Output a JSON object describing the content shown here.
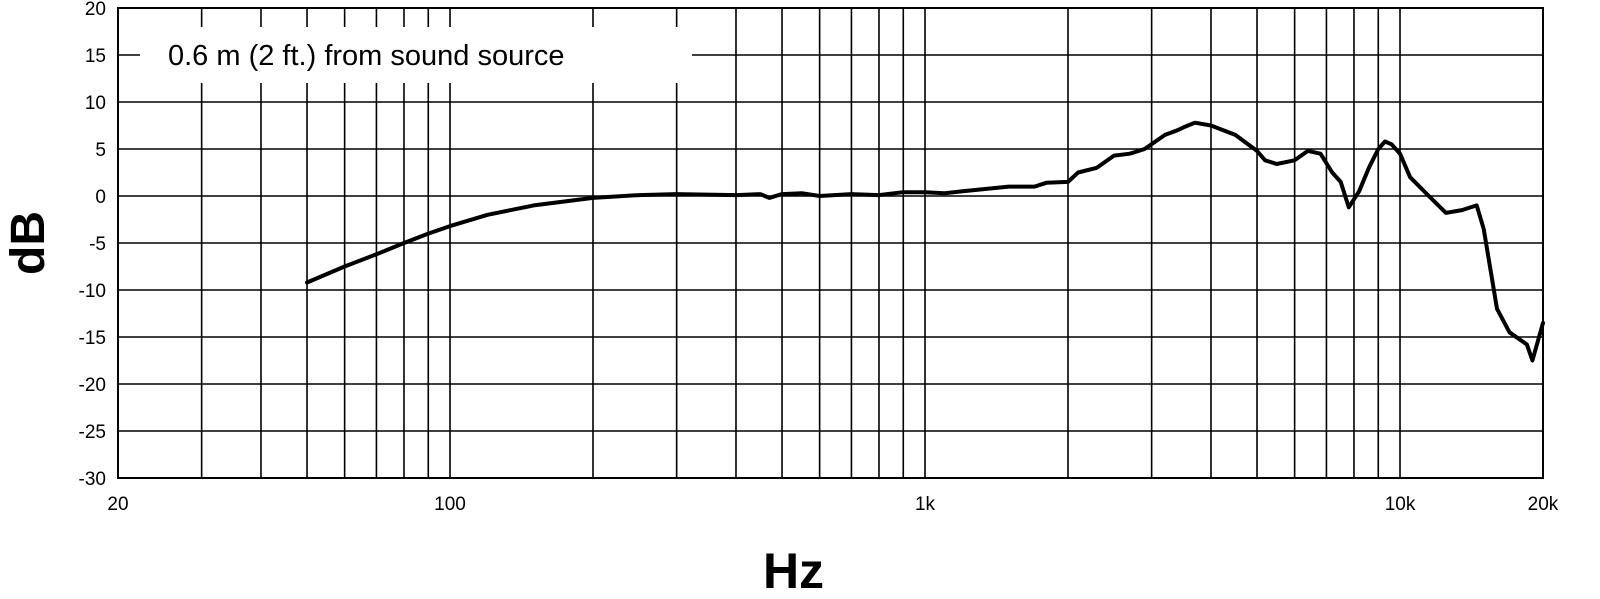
{
  "chart_data": {
    "type": "line",
    "title": "",
    "xlabel": "Hz",
    "ylabel": "dB",
    "x_scale": "log",
    "xlim": [
      20,
      20000
    ],
    "ylim": [
      -30,
      20
    ],
    "x_ticks": [
      20,
      100,
      1000,
      10000,
      20000
    ],
    "x_tick_labels": [
      "20",
      "100",
      "1k",
      "10k",
      "20k"
    ],
    "y_ticks": [
      20,
      15,
      10,
      5,
      0,
      -5,
      -10,
      -15,
      -20,
      -25,
      -30
    ],
    "y_tick_labels": [
      "20",
      "15",
      "10",
      "5",
      "0",
      "-5",
      "-10",
      "-15",
      "-20",
      "-25",
      "-30"
    ],
    "grid": true,
    "annotation": "0.6 m (2 ft.) from sound source",
    "line_color": "#000000",
    "series": [
      {
        "x": [
          50,
          60,
          70,
          80,
          90,
          100,
          120,
          150,
          200,
          250,
          300,
          400,
          450,
          470,
          500,
          550,
          600,
          700,
          800,
          900,
          1000,
          1100,
          1200,
          1500,
          1700,
          1800,
          2000,
          2100,
          2300,
          2500,
          2700,
          2900,
          3200,
          3400,
          3500,
          3700,
          4000,
          4500,
          5000,
          5200,
          5500,
          6000,
          6400,
          6800,
          7200,
          7500,
          7800,
          8200,
          8600,
          9000,
          9300,
          9600,
          10000,
          10500,
          11500,
          12500,
          13500,
          14500,
          15000,
          16000,
          17000,
          18500,
          19000,
          20000
        ],
        "y": [
          -9.2,
          -7.5,
          -6.2,
          -5.0,
          -4.0,
          -3.2,
          -2.0,
          -1.0,
          -0.2,
          0.1,
          0.2,
          0.1,
          0.2,
          -0.2,
          0.2,
          0.3,
          0.0,
          0.2,
          0.1,
          0.4,
          0.4,
          0.3,
          0.5,
          1.0,
          1.0,
          1.4,
          1.5,
          2.5,
          3.0,
          4.3,
          4.5,
          5.0,
          6.5,
          7.0,
          7.3,
          7.8,
          7.5,
          6.5,
          4.8,
          3.8,
          3.4,
          3.8,
          4.8,
          4.5,
          2.5,
          1.5,
          -1.2,
          0.5,
          3.0,
          5.0,
          5.8,
          5.5,
          4.5,
          2.0,
          0.0,
          -1.8,
          -1.5,
          -1.0,
          -3.5,
          -12.0,
          -14.5,
          -15.8,
          -17.5,
          -13.5
        ]
      }
    ]
  }
}
